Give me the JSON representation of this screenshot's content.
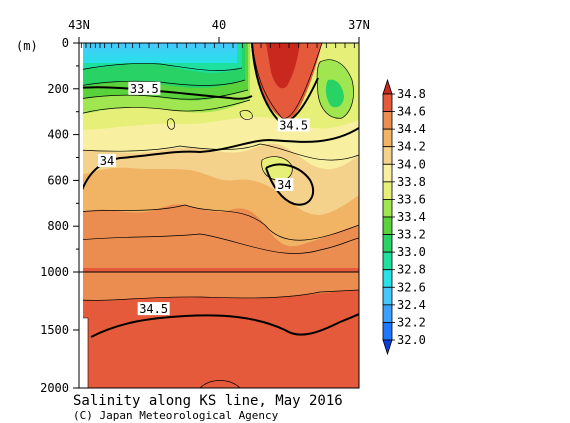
{
  "chart_data": {
    "type": "heatmap",
    "subtype": "filled-contour-section",
    "title": "Salinity along KS line, May 2016",
    "credit": "(C) Japan Meteorological Agency",
    "ylabel": "(m)",
    "x": {
      "ticks": [
        {
          "value": 43,
          "label": "43N"
        },
        {
          "value": 40,
          "label": "40"
        },
        {
          "value": 37,
          "label": "37N"
        }
      ],
      "range": [
        43,
        37
      ]
    },
    "y": {
      "upper_ticks": [
        0,
        200,
        400,
        600,
        800,
        1000
      ],
      "lower_ticks": [
        1500,
        2000
      ],
      "range": [
        0,
        2000
      ],
      "scale_break_depth": 1000
    },
    "colorbar": {
      "levels": [
        32.0,
        32.2,
        32.4,
        32.6,
        32.8,
        33.0,
        33.2,
        33.4,
        33.6,
        33.8,
        34.0,
        34.2,
        34.4,
        34.6,
        34.8
      ],
      "labels": [
        "32.0",
        "32.2",
        "32.4",
        "32.6",
        "32.8",
        "33.0",
        "33.2",
        "33.4",
        "33.6",
        "33.8",
        "34.0",
        "34.2",
        "34.4",
        "34.6",
        "34.8"
      ],
      "colors": [
        "#0a3cdc",
        "#1e78ff",
        "#3ca0ff",
        "#46c8ff",
        "#28e1e6",
        "#1ee1a0",
        "#28d264",
        "#5ad23c",
        "#a0e650",
        "#e6f078",
        "#f8f0a0",
        "#f5d28c",
        "#f0b464",
        "#eb8c50",
        "#e65a3c",
        "#c8281e"
      ]
    },
    "contour_labels": [
      {
        "text": "33.5",
        "value": 33.5,
        "lat": 41.6,
        "depth": 200
      },
      {
        "text": "34.5",
        "value": 34.5,
        "lat": 38.4,
        "depth": 360
      },
      {
        "text": "34",
        "value": 34.0,
        "lat": 42.4,
        "depth": 515
      },
      {
        "text": "34",
        "value": 34.0,
        "lat": 38.6,
        "depth": 620
      },
      {
        "text": "34.5",
        "value": 34.5,
        "lat": 41.4,
        "depth": 1320
      }
    ],
    "stations": [
      42.95,
      42.85,
      42.75,
      42.65,
      42.55,
      42.45,
      42.3,
      42.15,
      42.0,
      41.85,
      41.7,
      41.5,
      41.3,
      41.1,
      40.9,
      40.7,
      40.5,
      40.3,
      40.1,
      39.9,
      39.7,
      39.5,
      39.3,
      39.1,
      38.9,
      38.7,
      38.5,
      38.3,
      38.1,
      37.9,
      37.7,
      37.5,
      37.3,
      37.1
    ]
  }
}
